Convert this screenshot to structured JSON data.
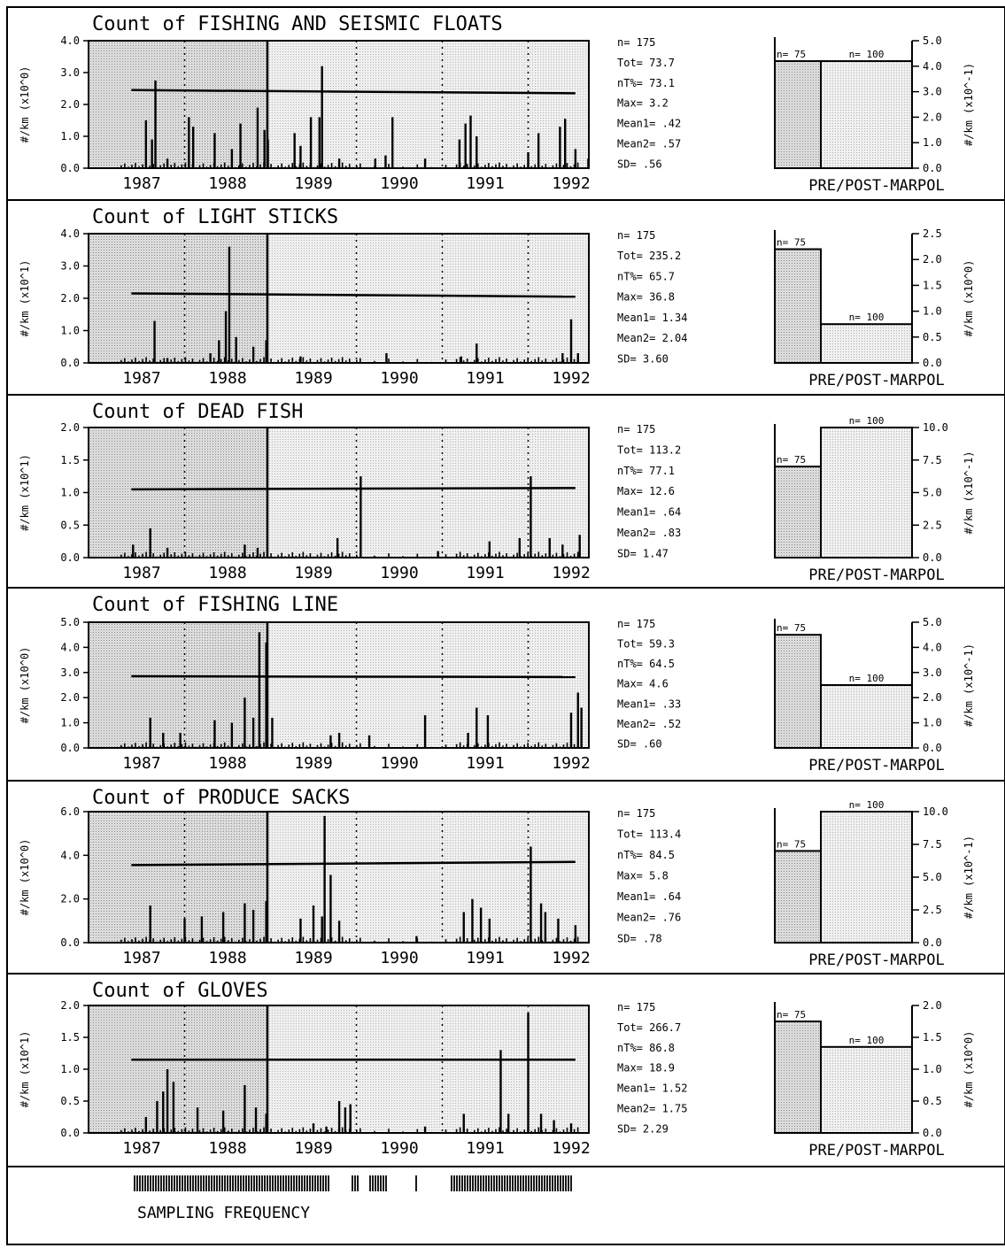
{
  "figure": {
    "sampling_frequency_label": "SAMPLING FREQUENCY",
    "colors": {
      "ink": "#000000",
      "shade_pre": "#cfcfcf",
      "shade_post": "#e9e9e9",
      "background": "#ffffff"
    }
  },
  "chart_data": [
    {
      "type": "bar",
      "title": "Count of   FISHING AND SEISMIC FLOATS",
      "ylabel": "#/km  (x10^0)",
      "yticks": [
        "0.0",
        "1.0",
        "2.0",
        "3.0",
        "4.0"
      ],
      "ylim": [
        0,
        4.0
      ],
      "xlabels": [
        "1987",
        "1988",
        "1989",
        "1990",
        "1991",
        "1992"
      ],
      "x_range": [
        1986.6,
        1992.3
      ],
      "marpol_x": 1988.55,
      "mean_line": [
        2.45,
        2.35
      ],
      "spikes": [
        [
          1987.05,
          1.5
        ],
        [
          1987.12,
          0.9
        ],
        [
          1987.16,
          2.75
        ],
        [
          1987.3,
          0.3
        ],
        [
          1987.55,
          1.6
        ],
        [
          1987.6,
          1.3
        ],
        [
          1987.85,
          1.1
        ],
        [
          1988.05,
          0.6
        ],
        [
          1988.15,
          1.4
        ],
        [
          1988.35,
          1.9
        ],
        [
          1988.43,
          1.2
        ],
        [
          1988.47,
          0.9
        ],
        [
          1988.78,
          1.1
        ],
        [
          1988.85,
          0.7
        ],
        [
          1988.97,
          1.6
        ],
        [
          1989.1,
          3.2
        ],
        [
          1989.07,
          1.6
        ],
        [
          1989.3,
          0.3
        ],
        [
          1989.72,
          0.3
        ],
        [
          1989.84,
          0.4
        ],
        [
          1989.92,
          1.6
        ],
        [
          1990.3,
          0.3
        ],
        [
          1990.7,
          0.9
        ],
        [
          1990.77,
          1.4
        ],
        [
          1990.83,
          1.65
        ],
        [
          1990.9,
          1.0
        ],
        [
          1991.5,
          0.5
        ],
        [
          1991.62,
          1.1
        ],
        [
          1991.87,
          1.3
        ],
        [
          1991.93,
          1.55
        ],
        [
          1992.05,
          0.6
        ],
        [
          1992.2,
          0.3
        ]
      ],
      "stats": {
        "n": "n=  175",
        "tot": "Tot=  73.7",
        "ntpct": "nT%=  73.1",
        "max": "Max=  3.2",
        "mean1": "Mean1=  .42",
        "mean2": "Mean2=  .57",
        "sd": "SD=  .56"
      },
      "prepost": {
        "yticks": [
          "0.0",
          "1.0",
          "2.0",
          "3.0",
          "4.0",
          "5.0"
        ],
        "ylim": [
          0,
          5.0
        ],
        "ylabel": "#/km  (x10^-1)",
        "pre_label": "n= 75",
        "post_label": "n= 100",
        "pre": 4.2,
        "post": 4.2,
        "xlabel": "PRE/POST-MARPOL"
      }
    },
    {
      "type": "bar",
      "title": "Count of   LIGHT STICKS",
      "ylabel": "#/km  (x10^1)",
      "yticks": [
        "0.0",
        "1.0",
        "2.0",
        "3.0",
        "4.0"
      ],
      "ylim": [
        0,
        4.0
      ],
      "xlabels": [
        "1987",
        "1988",
        "1989",
        "1990",
        "1991",
        "1992"
      ],
      "x_range": [
        1986.6,
        1992.3
      ],
      "marpol_x": 1988.55,
      "mean_line": [
        2.15,
        2.05
      ],
      "spikes": [
        [
          1987.15,
          1.3
        ],
        [
          1987.3,
          0.15
        ],
        [
          1987.8,
          0.3
        ],
        [
          1987.9,
          0.7
        ],
        [
          1987.98,
          1.6
        ],
        [
          1988.02,
          3.6
        ],
        [
          1988.1,
          0.8
        ],
        [
          1988.3,
          0.5
        ],
        [
          1988.45,
          0.7
        ],
        [
          1988.85,
          0.2
        ],
        [
          1989.85,
          0.3
        ],
        [
          1990.72,
          0.2
        ],
        [
          1990.9,
          0.6
        ],
        [
          1991.9,
          0.3
        ],
        [
          1992.0,
          1.35
        ],
        [
          1992.08,
          0.3
        ]
      ],
      "stats": {
        "n": "n=  175",
        "tot": "Tot=  235.2",
        "ntpct": "nT%=  65.7",
        "max": "Max=  36.8",
        "mean1": "Mean1=  1.34",
        "mean2": "Mean2=  2.04",
        "sd": "SD=  3.60"
      },
      "prepost": {
        "yticks": [
          "0.0",
          "0.5",
          "1.0",
          "1.5",
          "2.0",
          "2.5"
        ],
        "ylim": [
          0,
          2.5
        ],
        "ylabel": "#/km  (x10^0)",
        "pre_label": "n= 75",
        "post_label": "n= 100",
        "pre": 2.2,
        "post": 0.75,
        "xlabel": "PRE/POST-MARPOL"
      }
    },
    {
      "type": "bar",
      "title": "Count of   DEAD FISH",
      "ylabel": "#/km  (x10^1)",
      "yticks": [
        "0.0",
        "0.5",
        "1.0",
        "1.5",
        "2.0"
      ],
      "ylim": [
        0,
        2.0
      ],
      "xlabels": [
        "1987",
        "1988",
        "1989",
        "1990",
        "1991",
        "1992"
      ],
      "x_range": [
        1986.6,
        1992.3
      ],
      "marpol_x": 1988.55,
      "mean_line": [
        1.05,
        1.07
      ],
      "spikes": [
        [
          1986.9,
          0.2
        ],
        [
          1987.1,
          0.45
        ],
        [
          1987.3,
          0.15
        ],
        [
          1988.2,
          0.2
        ],
        [
          1988.35,
          0.15
        ],
        [
          1989.28,
          0.3
        ],
        [
          1989.55,
          1.25
        ],
        [
          1990.45,
          0.1
        ],
        [
          1991.05,
          0.25
        ],
        [
          1991.4,
          0.3
        ],
        [
          1991.53,
          1.25
        ],
        [
          1991.75,
          0.3
        ],
        [
          1991.9,
          0.2
        ],
        [
          1992.1,
          0.35
        ]
      ],
      "stats": {
        "n": "n=  175",
        "tot": "Tot=  113.2",
        "ntpct": "nT%=  77.1",
        "max": "Max=  12.6",
        "mean1": "Mean1=  .64",
        "mean2": "Mean2=  .83",
        "sd": "SD=  1.47"
      },
      "prepost": {
        "yticks": [
          "0.0",
          "2.5",
          "5.0",
          "7.5",
          "10.0"
        ],
        "ylim": [
          0,
          10.0
        ],
        "ylabel": "#/km  (x10^-1)",
        "pre_label": "n= 75",
        "post_label": "n= 100",
        "pre": 7.0,
        "post": 10.0,
        "xlabel": "PRE/POST-MARPOL"
      }
    },
    {
      "type": "bar",
      "title": "Count of   FISHING LINE",
      "ylabel": "#/km  (x10^0)",
      "yticks": [
        "0.0",
        "1.0",
        "2.0",
        "3.0",
        "4.0",
        "5.0"
      ],
      "ylim": [
        0,
        5.0
      ],
      "xlabels": [
        "1987",
        "1988",
        "1989",
        "1990",
        "1991",
        "1992"
      ],
      "x_range": [
        1986.6,
        1992.3
      ],
      "marpol_x": 1988.55,
      "mean_line": [
        2.85,
        2.82
      ],
      "spikes": [
        [
          1987.1,
          1.2
        ],
        [
          1987.25,
          0.6
        ],
        [
          1987.45,
          0.6
        ],
        [
          1987.85,
          1.1
        ],
        [
          1988.05,
          1.0
        ],
        [
          1988.2,
          2.0
        ],
        [
          1988.3,
          1.2
        ],
        [
          1988.37,
          4.6
        ],
        [
          1988.45,
          4.2
        ],
        [
          1988.52,
          1.2
        ],
        [
          1989.2,
          0.5
        ],
        [
          1989.3,
          0.6
        ],
        [
          1989.65,
          0.5
        ],
        [
          1990.3,
          1.3
        ],
        [
          1990.8,
          0.6
        ],
        [
          1990.9,
          1.6
        ],
        [
          1991.03,
          1.3
        ],
        [
          1992.0,
          1.4
        ],
        [
          1992.08,
          2.2
        ],
        [
          1992.12,
          1.6
        ]
      ],
      "stats": {
        "n": "n=  175",
        "tot": "Tot=  59.3",
        "ntpct": "nT%=  64.5",
        "max": "Max=  4.6",
        "mean1": "Mean1=  .33",
        "mean2": "Mean2=  .52",
        "sd": "SD=  .60"
      },
      "prepost": {
        "yticks": [
          "0.0",
          "1.0",
          "2.0",
          "3.0",
          "4.0",
          "5.0"
        ],
        "ylim": [
          0,
          5.0
        ],
        "ylabel": "#/km  (x10^-1)",
        "pre_label": "n= 75",
        "post_label": "n= 100",
        "pre": 4.5,
        "post": 2.5,
        "xlabel": "PRE/POST-MARPOL"
      }
    },
    {
      "type": "bar",
      "title": "Count of   PRODUCE SACKS",
      "ylabel": "#/km  (x10^0)",
      "yticks": [
        "0.0",
        "2.0",
        "4.0",
        "6.0"
      ],
      "ylim": [
        0,
        6.0
      ],
      "xlabels": [
        "1987",
        "1988",
        "1989",
        "1990",
        "1991",
        "1992"
      ],
      "x_range": [
        1986.6,
        1992.3
      ],
      "marpol_x": 1988.55,
      "mean_line": [
        3.55,
        3.7
      ],
      "spikes": [
        [
          1987.1,
          1.7
        ],
        [
          1987.5,
          1.1
        ],
        [
          1987.7,
          1.2
        ],
        [
          1987.95,
          1.4
        ],
        [
          1988.2,
          1.8
        ],
        [
          1988.3,
          1.5
        ],
        [
          1988.45,
          1.9
        ],
        [
          1988.85,
          1.1
        ],
        [
          1989.0,
          1.7
        ],
        [
          1989.1,
          1.2
        ],
        [
          1989.13,
          5.8
        ],
        [
          1989.2,
          3.1
        ],
        [
          1989.3,
          1.0
        ],
        [
          1990.2,
          0.3
        ],
        [
          1990.75,
          1.4
        ],
        [
          1990.85,
          2.0
        ],
        [
          1990.95,
          1.6
        ],
        [
          1991.05,
          1.1
        ],
        [
          1991.53,
          4.4
        ],
        [
          1991.65,
          1.8
        ],
        [
          1991.7,
          1.4
        ],
        [
          1991.85,
          1.1
        ],
        [
          1992.05,
          0.8
        ]
      ],
      "stats": {
        "n": "n=  175",
        "tot": "Tot=  113.4",
        "ntpct": "nT%=  84.5",
        "max": "Max=  5.8",
        "mean1": "Mean1=  .64",
        "mean2": "Mean2=  .76",
        "sd": "SD=  .78"
      },
      "prepost": {
        "yticks": [
          "0.0",
          "2.5",
          "5.0",
          "7.5",
          "10.0"
        ],
        "ylim": [
          0,
          10.0
        ],
        "ylabel": "#/km  (x10^-1)",
        "pre_label": "n= 75",
        "post_label": "n= 100",
        "pre": 7.0,
        "post": 10.0,
        "xlabel": "PRE/POST-MARPOL"
      }
    },
    {
      "type": "bar",
      "title": "Count of   GLOVES",
      "ylabel": "#/km  (x10^1)",
      "yticks": [
        "0.0",
        "0.5",
        "1.0",
        "1.5",
        "2.0"
      ],
      "ylim": [
        0,
        2.0
      ],
      "xlabels": [
        "1987",
        "1988",
        "1989",
        "1990",
        "1991",
        "1992"
      ],
      "x_range": [
        1986.6,
        1992.3
      ],
      "marpol_x": 1988.55,
      "mean_line": [
        1.15,
        1.15
      ],
      "spikes": [
        [
          1987.05,
          0.25
        ],
        [
          1987.18,
          0.5
        ],
        [
          1987.25,
          0.65
        ],
        [
          1987.3,
          1.0
        ],
        [
          1987.37,
          0.8
        ],
        [
          1987.65,
          0.4
        ],
        [
          1987.95,
          0.35
        ],
        [
          1988.2,
          0.75
        ],
        [
          1988.33,
          0.4
        ],
        [
          1988.45,
          0.3
        ],
        [
          1989.0,
          0.15
        ],
        [
          1989.15,
          0.1
        ],
        [
          1989.3,
          0.5
        ],
        [
          1989.37,
          0.4
        ],
        [
          1989.43,
          0.45
        ],
        [
          1990.3,
          0.1
        ],
        [
          1990.75,
          0.3
        ],
        [
          1991.18,
          1.3
        ],
        [
          1991.27,
          0.3
        ],
        [
          1991.5,
          1.88
        ],
        [
          1991.65,
          0.3
        ],
        [
          1991.8,
          0.2
        ],
        [
          1992.0,
          0.15
        ]
      ],
      "stats": {
        "n": "n=  175",
        "tot": "Tot=  266.7",
        "ntpct": "nT%=  86.8",
        "max": "Max=  18.9",
        "mean1": "Mean1=  1.52",
        "mean2": "Mean2=  1.75",
        "sd": "SD=  2.29"
      },
      "prepost": {
        "yticks": [
          "0.0",
          "0.5",
          "1.0",
          "1.5",
          "2.0"
        ],
        "ylim": [
          0,
          2.0
        ],
        "ylabel": "#/km  (x10^0)",
        "pre_label": "n= 75",
        "post_label": "n= 100",
        "pre": 1.75,
        "post": 1.35,
        "xlabel": "PRE/POST-MARPOL"
      }
    }
  ]
}
